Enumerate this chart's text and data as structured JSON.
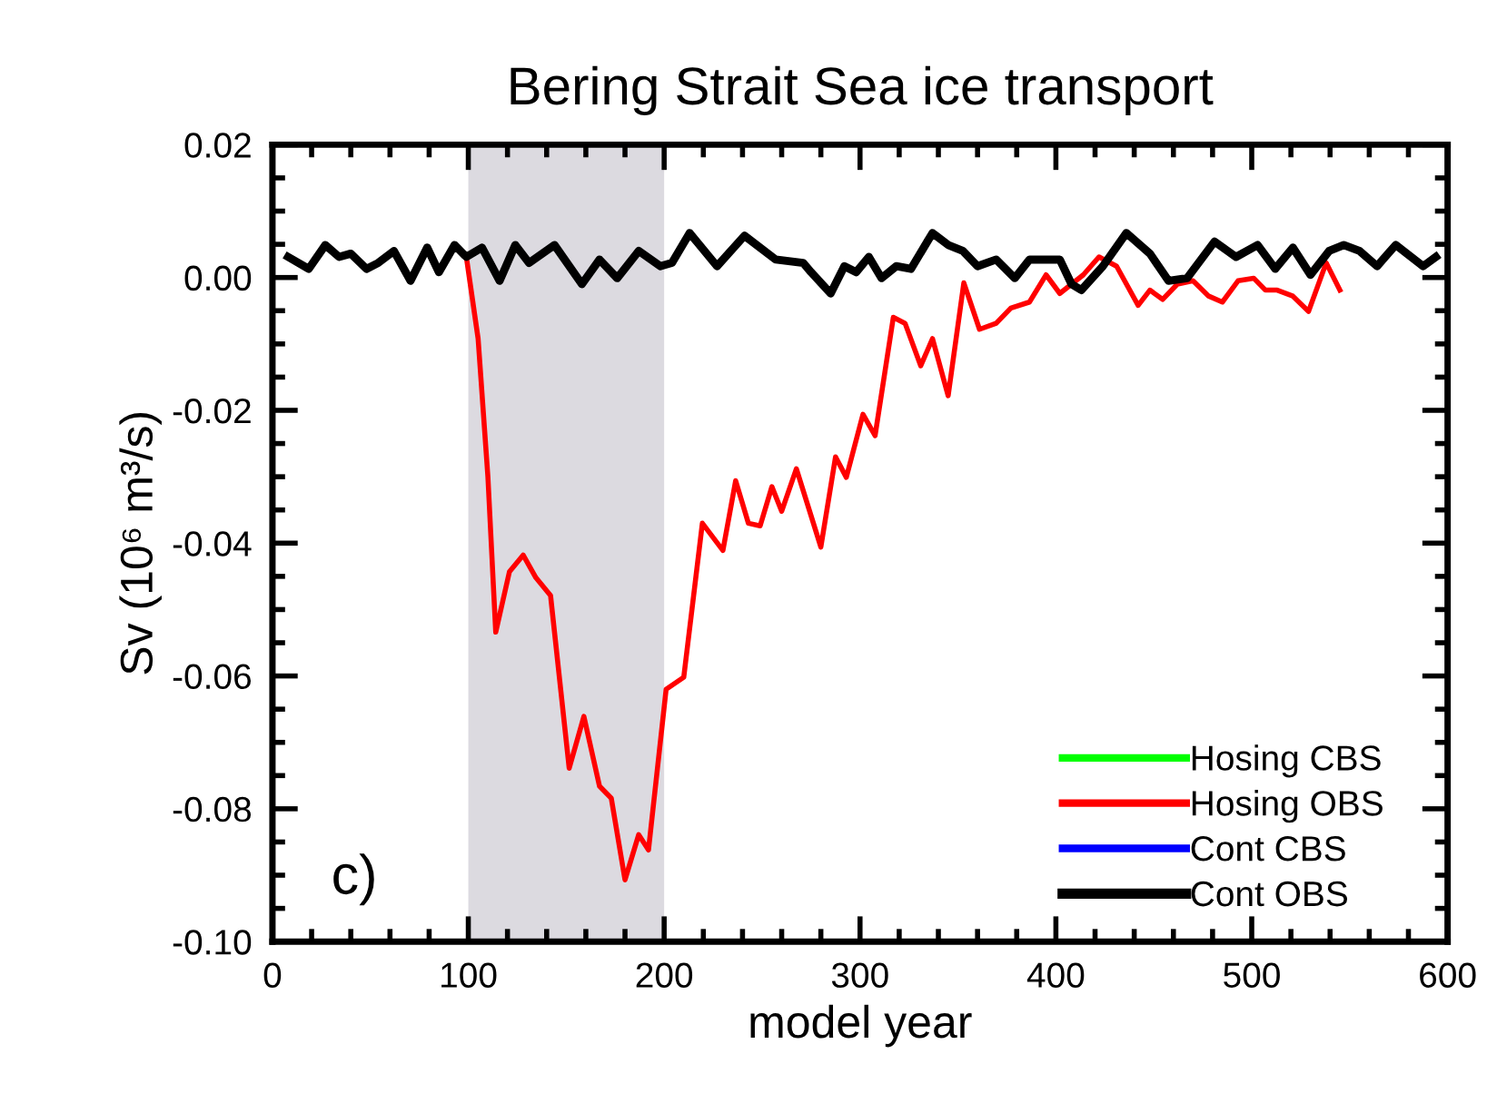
{
  "chart_data": {
    "type": "line",
    "title": "Bering Strait Sea ice transport",
    "xlabel": "model year",
    "ylabel": "Sv (10⁶ m³/s)",
    "xlim": [
      0,
      600
    ],
    "xticks": [
      0,
      100,
      200,
      300,
      400,
      500,
      600
    ],
    "ylim": [
      -0.1,
      0.02
    ],
    "yticks": [
      {
        "value": -0.1,
        "label": "-0.10"
      },
      {
        "value": -0.08,
        "label": "-0.08"
      },
      {
        "value": -0.06,
        "label": "-0.06"
      },
      {
        "value": -0.04,
        "label": "-0.04"
      },
      {
        "value": -0.02,
        "label": "-0.02"
      },
      {
        "value": 0,
        "label": "0.00"
      },
      {
        "value": 0.02,
        "label": "0.02"
      }
    ],
    "grid": false,
    "legend": "bottom right",
    "marker": "none",
    "line_style": "solid",
    "bands": [
      {
        "axis": "x",
        "from": 100,
        "to": 200,
        "color": "#dcdae0"
      }
    ],
    "annotations": [
      "c)"
    ],
    "series": [
      {
        "name": "Hosing CBS",
        "color": "#00ff00"
      },
      {
        "name": "Hosing OBS",
        "color": "#ff0000",
        "x": [
          99,
          105,
          110,
          114,
          121,
          128,
          134.5,
          142,
          151.5,
          159,
          167,
          173,
          180,
          187,
          192,
          201,
          210,
          219.5,
          230,
          236.5,
          243,
          249,
          255,
          260,
          267.5,
          280,
          287.5,
          293,
          301.5,
          307.7,
          317,
          323,
          331,
          337,
          345,
          353,
          361,
          369.5,
          377,
          386.5,
          395,
          402,
          414,
          422,
          431,
          442,
          448,
          454.5,
          462,
          470,
          478,
          485,
          493,
          501,
          507,
          513,
          521,
          529,
          538,
          545
        ],
        "values": [
          0.0031,
          -0.0092,
          -0.03,
          -0.0534,
          -0.0443,
          -0.0418,
          -0.0452,
          -0.0479,
          -0.0739,
          -0.0661,
          -0.0766,
          -0.0784,
          -0.0907,
          -0.0839,
          -0.0862,
          -0.062,
          -0.0602,
          -0.037,
          -0.0411,
          -0.0306,
          -0.037,
          -0.0374,
          -0.0315,
          -0.0352,
          -0.0288,
          -0.0406,
          -0.027,
          -0.0301,
          -0.0206,
          -0.0238,
          -0.006,
          -0.0069,
          -0.0133,
          -0.0092,
          -0.0178,
          -0.0008,
          -0.0078,
          -0.0069,
          -0.0046,
          -0.0037,
          0.0004,
          -0.0024,
          0.0004,
          0.0031,
          0.0017,
          -0.0042,
          -0.0019,
          -0.0033,
          -0.001,
          -0.0005,
          -0.0028,
          -0.0037,
          -0.0005,
          -0.0001,
          -0.0019,
          -0.0019,
          -0.0028,
          -0.0051,
          0.0022,
          -0.0019
        ]
      },
      {
        "name": "Cont CBS",
        "color": "#0000ff"
      },
      {
        "name": "Cont OBS",
        "color": "#000000",
        "x": [
          8,
          18.5,
          27,
          34,
          40,
          48,
          54,
          62,
          70.5,
          79,
          85,
          93,
          99,
          107,
          116,
          124,
          131,
          144,
          158,
          167,
          176,
          187,
          198,
          204,
          213,
          227,
          241,
          257,
          271,
          275,
          285,
          292,
          298,
          304.5,
          311,
          318.5,
          326,
          337,
          345,
          352.5,
          360,
          369.5,
          379,
          386.5,
          402,
          408,
          413,
          424,
          436,
          448,
          457.5,
          467,
          481,
          492,
          503,
          512,
          521,
          530,
          539.5,
          547,
          555,
          564,
          573.5,
          587.5,
          594
        ],
        "values": [
          0.0031,
          0.0013,
          0.0049,
          0.0031,
          0.0036,
          0.0013,
          0.0022,
          0.004,
          -0.0005,
          0.0045,
          0.0008,
          0.0049,
          0.0031,
          0.0045,
          -0.0005,
          0.0049,
          0.0022,
          0.0049,
          -0.001,
          0.0027,
          -0.0001,
          0.004,
          0.0017,
          0.0022,
          0.0067,
          0.0017,
          0.0063,
          0.0027,
          0.0022,
          0.0008,
          -0.0024,
          0.0017,
          0.0008,
          0.0031,
          -0.0001,
          0.0017,
          0.0013,
          0.0067,
          0.0049,
          0.004,
          0.0017,
          0.0027,
          -0.0001,
          0.0027,
          0.0027,
          -0.001,
          -0.0019,
          0.0017,
          0.0067,
          0.0036,
          -0.0005,
          -0.0001,
          0.0054,
          0.0031,
          0.0049,
          0.0013,
          0.0045,
          0.0004,
          0.004,
          0.0049,
          0.004,
          0.0017,
          0.0049,
          0.0017,
          0.0031
        ]
      }
    ]
  }
}
